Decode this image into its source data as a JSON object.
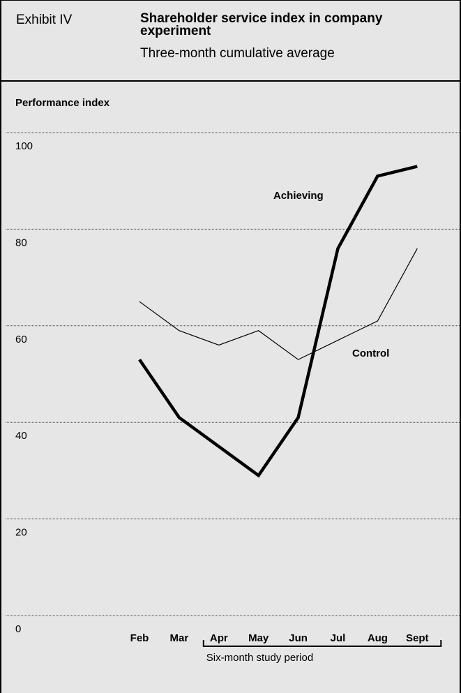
{
  "header": {
    "exhibit": "Exhibit IV",
    "title": "Shareholder service index in company experiment",
    "subtitle": "Three-month cumulative average"
  },
  "chart_data": {
    "type": "line",
    "title": "Shareholder service index in company experiment",
    "subtitle": "Three-month cumulative average",
    "ylabel": "Performance index",
    "xlabel": "",
    "categories": [
      "Feb",
      "Mar",
      "Apr",
      "May",
      "Jun",
      "Jul",
      "Aug",
      "Sept"
    ],
    "yticks": [
      0,
      20,
      40,
      60,
      80,
      100
    ],
    "ylim": [
      0,
      100
    ],
    "grid": true,
    "series": [
      {
        "name": "Achieving",
        "values": [
          53,
          41,
          35,
          29,
          41,
          76,
          91,
          93
        ],
        "color": "#000000",
        "weight": "heavy"
      },
      {
        "name": "Control",
        "values": [
          65,
          59,
          56,
          59,
          53,
          57,
          61,
          76
        ],
        "color": "#000000",
        "weight": "light"
      }
    ],
    "annotations": [
      {
        "text": "Six-month study period",
        "span": [
          "Apr",
          "Sept"
        ]
      }
    ]
  }
}
